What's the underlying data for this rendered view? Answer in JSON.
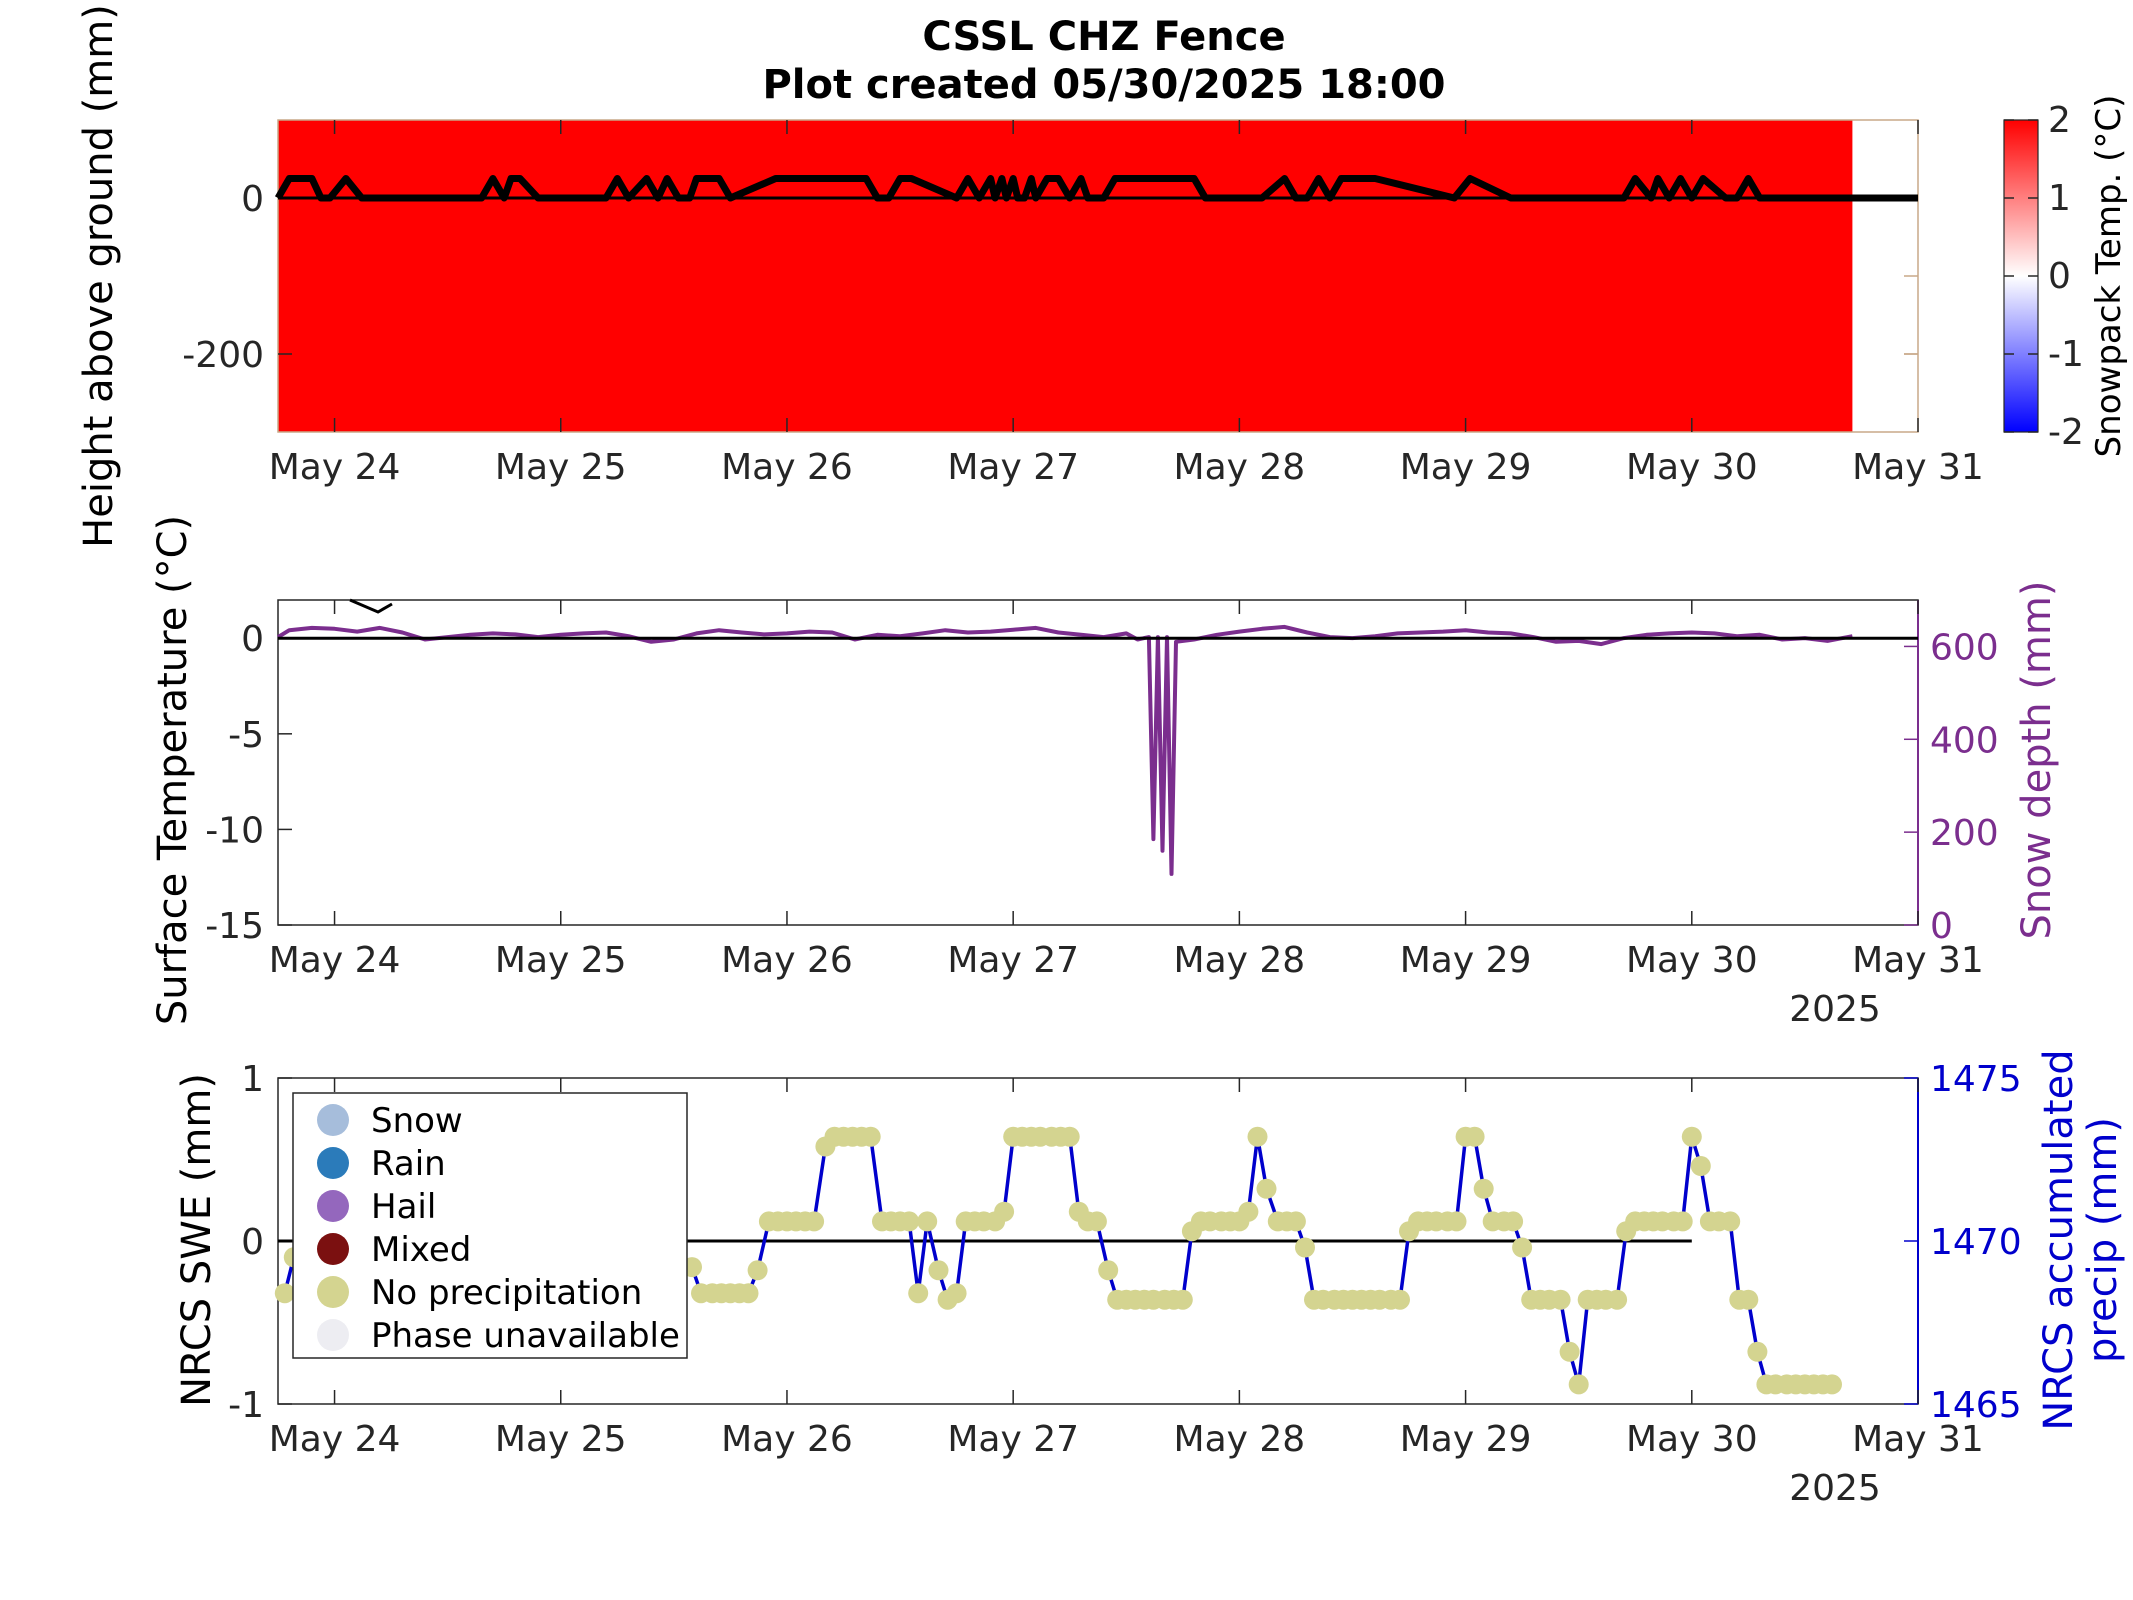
{
  "title": {
    "line1": "CSSL CHZ Fence",
    "line2": "Plot created 05/30/2025 18:00"
  },
  "chart_data": [
    {
      "type": "heatmap",
      "name": "snowpack-profile",
      "ylabel": "Height above ground (mm)",
      "ylim": [
        -300,
        100
      ],
      "yticks": [
        0,
        -200
      ],
      "xticks": [
        "May 24",
        "May 25",
        "May 26",
        "May 27",
        "May 28",
        "May 29",
        "May 30",
        "May 31"
      ],
      "xlim_days": [
        23.75,
        31.0
      ],
      "fill_end_day": 30.71,
      "fill_color": "#ff0000",
      "colorbar": {
        "label": "Snowpack Temp. (°C)",
        "ticks": [
          2,
          1,
          0,
          -1,
          -2
        ],
        "colormap": [
          "#0000ff",
          "#ffffff",
          "#ff0000"
        ]
      },
      "height_trace": {
        "color": "#000000",
        "x_day": [
          23.75,
          23.8,
          23.82,
          23.9,
          23.94,
          23.98,
          24.05,
          24.12,
          24.15,
          24.2,
          24.65,
          24.7,
          24.75,
          24.78,
          24.82,
          24.9,
          24.95,
          25.2,
          25.25,
          25.3,
          25.38,
          25.43,
          25.47,
          25.52,
          25.57,
          25.6,
          25.7,
          25.75,
          25.95,
          26.35,
          26.4,
          26.45,
          26.5,
          26.55,
          26.75,
          26.8,
          26.85,
          26.9,
          26.92,
          26.95,
          26.97,
          27.0,
          27.02,
          27.05,
          27.08,
          27.1,
          27.15,
          27.2,
          27.25,
          27.3,
          27.33,
          27.4,
          27.45,
          27.55,
          27.8,
          27.85,
          28.1,
          28.2,
          28.25,
          28.3,
          28.35,
          28.4,
          28.45,
          28.6,
          28.95,
          29.02,
          29.2,
          29.3,
          29.7,
          29.75,
          29.82,
          29.85,
          29.9,
          29.95,
          30.0,
          30.05,
          30.15,
          30.2,
          30.25,
          30.3,
          30.35,
          30.4,
          30.45,
          30.5,
          30.55,
          30.62,
          30.68,
          30.71,
          31.0
        ],
        "y_mm": [
          0,
          25,
          25,
          25,
          0,
          0,
          25,
          0,
          0,
          0,
          0,
          25,
          0,
          25,
          25,
          0,
          0,
          0,
          25,
          0,
          25,
          0,
          25,
          0,
          0,
          25,
          25,
          0,
          25,
          25,
          0,
          0,
          25,
          25,
          0,
          25,
          0,
          25,
          0,
          25,
          0,
          25,
          0,
          0,
          25,
          0,
          25,
          25,
          0,
          25,
          0,
          0,
          25,
          25,
          25,
          0,
          0,
          25,
          0,
          0,
          25,
          0,
          25,
          25,
          0,
          25,
          0,
          0,
          0,
          25,
          0,
          25,
          0,
          25,
          0,
          25,
          0,
          0,
          25,
          0,
          0,
          0,
          0,
          0,
          0,
          0,
          0,
          0,
          0
        ]
      }
    },
    {
      "type": "line",
      "name": "surface-temperature",
      "xlabel": "2025",
      "ylabel": "Surface Temperature (°C)",
      "ylabel_right": "Snow depth (mm)",
      "ylim": [
        -15,
        2
      ],
      "yticks": [
        0,
        -5,
        -10,
        -15
      ],
      "ylim_right": [
        0,
        700
      ],
      "yticks_right": [
        600,
        400,
        200,
        0
      ],
      "xticks": [
        "May 24",
        "May 25",
        "May 26",
        "May 27",
        "May 28",
        "May 29",
        "May 30",
        "May 31"
      ],
      "xlim_days": [
        23.75,
        31.0
      ],
      "series": [
        {
          "axis": "right",
          "color": "#7b2e8e",
          "x_day": [
            23.75,
            23.8,
            23.9,
            24.0,
            24.1,
            24.2,
            24.3,
            24.4,
            24.5,
            24.6,
            24.7,
            24.8,
            24.9,
            25.0,
            25.1,
            25.2,
            25.3,
            25.4,
            25.5,
            25.6,
            25.7,
            25.8,
            25.9,
            26.0,
            26.1,
            26.2,
            26.3,
            26.4,
            26.5,
            26.6,
            26.7,
            26.8,
            26.9,
            27.0,
            27.1,
            27.2,
            27.3,
            27.4,
            27.5,
            27.55,
            27.6,
            27.62,
            27.64,
            27.66,
            27.68,
            27.7,
            27.72,
            27.8,
            27.9,
            28.0,
            28.1,
            28.2,
            28.3,
            28.4,
            28.5,
            28.6,
            28.7,
            28.8,
            28.9,
            29.0,
            29.1,
            29.2,
            29.3,
            29.4,
            29.5,
            29.6,
            29.7,
            29.8,
            29.9,
            30.0,
            30.1,
            30.2,
            30.3,
            30.4,
            30.5,
            30.6,
            30.71
          ],
          "values": [
            620,
            635,
            640,
            638,
            632,
            640,
            630,
            615,
            620,
            625,
            628,
            626,
            620,
            625,
            628,
            630,
            622,
            610,
            615,
            628,
            635,
            630,
            626,
            628,
            632,
            630,
            615,
            625,
            622,
            628,
            635,
            630,
            632,
            636,
            640,
            630,
            625,
            620,
            628,
            615,
            620,
            185,
            620,
            160,
            620,
            110,
            610,
            615,
            625,
            632,
            638,
            642,
            630,
            620,
            618,
            622,
            628,
            630,
            632,
            635,
            630,
            628,
            620,
            610,
            612,
            605,
            618,
            625,
            628,
            630,
            628,
            622,
            625,
            615,
            618,
            612,
            622
          ]
        },
        {
          "axis": "left",
          "color": "#000000",
          "x_day": [
            23.75,
            31.0
          ],
          "values": [
            0,
            0
          ]
        }
      ]
    },
    {
      "type": "scatter",
      "name": "nrcs-swe",
      "xlabel": "2025",
      "ylabel": "NRCS SWE (mm)",
      "ylabel_right": "NRCS accumulated precip (mm)",
      "ylim": [
        -1,
        1
      ],
      "yticks": [
        1,
        0,
        -1
      ],
      "ylim_right": [
        1465,
        1475
      ],
      "yticks_right": [
        1475,
        1470,
        1465
      ],
      "xticks": [
        "May 24",
        "May 25",
        "May 26",
        "May 27",
        "May 28",
        "May 29",
        "May 30",
        "May 31"
      ],
      "xlim_days": [
        23.75,
        31.0
      ],
      "legend": {
        "position": "top-left",
        "entries": [
          {
            "label": "Snow",
            "color": "#a6bddb"
          },
          {
            "label": "Rain",
            "color": "#2b7bba"
          },
          {
            "label": "Hail",
            "color": "#9467bd"
          },
          {
            "label": "Mixed",
            "color": "#7b1010"
          },
          {
            "label": "No precipitation",
            "color": "#d4d490"
          },
          {
            "label": "Phase unavailable",
            "color": "#ededf2"
          }
        ]
      },
      "line_color": "#0000cc",
      "zero_line_color": "#000000",
      "marker_color": "#d4d490",
      "series": [
        {
          "name": "No precipitation",
          "x_day": [
            23.78,
            23.82,
            25.58,
            25.62,
            25.67,
            25.71,
            25.75,
            25.79,
            25.83,
            25.87,
            25.92,
            25.96,
            26.0,
            26.04,
            26.08,
            26.12,
            26.17,
            26.21,
            26.25,
            26.29,
            26.33,
            26.37,
            26.42,
            26.46,
            26.5,
            26.54,
            26.58,
            26.62,
            26.67,
            26.71,
            26.75,
            26.79,
            26.83,
            26.87,
            26.92,
            26.96,
            27.0,
            27.04,
            27.08,
            27.12,
            27.17,
            27.21,
            27.25,
            27.29,
            27.33,
            27.37,
            27.42,
            27.46,
            27.5,
            27.54,
            27.58,
            27.62,
            27.67,
            27.71,
            27.75,
            27.79,
            27.83,
            27.87,
            27.92,
            27.96,
            28.0,
            28.04,
            28.08,
            28.12,
            28.17,
            28.21,
            28.25,
            28.29,
            28.33,
            28.37,
            28.42,
            28.46,
            28.5,
            28.54,
            28.58,
            28.62,
            28.67,
            28.71,
            28.75,
            28.79,
            28.83,
            28.87,
            28.92,
            28.96,
            29.0,
            29.04,
            29.08,
            29.12,
            29.17,
            29.21,
            29.25,
            29.29,
            29.33,
            29.37,
            29.42,
            29.46,
            29.5,
            29.54,
            29.58,
            29.62,
            29.67,
            29.71,
            29.75,
            29.79,
            29.83,
            29.87,
            29.92,
            29.96,
            30.0,
            30.04,
            30.08,
            30.12,
            30.17,
            30.21,
            30.25,
            30.29,
            30.33,
            30.37,
            30.42,
            30.46,
            30.5,
            30.54,
            30.58,
            30.62
          ],
          "y_precip": [
            1468.4,
            1469.5,
            1469.2,
            1468.4,
            1468.4,
            1468.4,
            1468.4,
            1468.4,
            1468.4,
            1469.1,
            1470.6,
            1470.6,
            1470.6,
            1470.6,
            1470.6,
            1470.6,
            1472.9,
            1473.2,
            1473.2,
            1473.2,
            1473.2,
            1473.2,
            1470.6,
            1470.6,
            1470.6,
            1470.6,
            1468.4,
            1470.6,
            1469.1,
            1468.2,
            1468.4,
            1470.6,
            1470.6,
            1470.6,
            1470.6,
            1470.9,
            1473.2,
            1473.2,
            1473.2,
            1473.2,
            1473.2,
            1473.2,
            1473.2,
            1470.9,
            1470.6,
            1470.6,
            1469.1,
            1468.2,
            1468.2,
            1468.2,
            1468.2,
            1468.2,
            1468.2,
            1468.2,
            1468.2,
            1470.3,
            1470.6,
            1470.6,
            1470.6,
            1470.6,
            1470.6,
            1470.9,
            1473.2,
            1471.6,
            1470.6,
            1470.6,
            1470.6,
            1469.8,
            1468.2,
            1468.2,
            1468.2,
            1468.2,
            1468.2,
            1468.2,
            1468.2,
            1468.2,
            1468.2,
            1468.2,
            1470.3,
            1470.6,
            1470.6,
            1470.6,
            1470.6,
            1470.6,
            1473.2,
            1473.2,
            1471.6,
            1470.6,
            1470.6,
            1470.6,
            1469.8,
            1468.2,
            1468.2,
            1468.2,
            1468.2,
            1466.6,
            1465.6,
            1468.2,
            1468.2,
            1468.2,
            1468.2,
            1470.3,
            1470.6,
            1470.6,
            1470.6,
            1470.6,
            1470.6,
            1470.6,
            1473.2,
            1472.3,
            1470.6,
            1470.6,
            1470.6,
            1468.2,
            1468.2,
            1466.6,
            1465.6,
            1465.6,
            1465.6,
            1465.6,
            1465.6,
            1465.6,
            1465.6,
            1465.6
          ]
        }
      ]
    }
  ]
}
